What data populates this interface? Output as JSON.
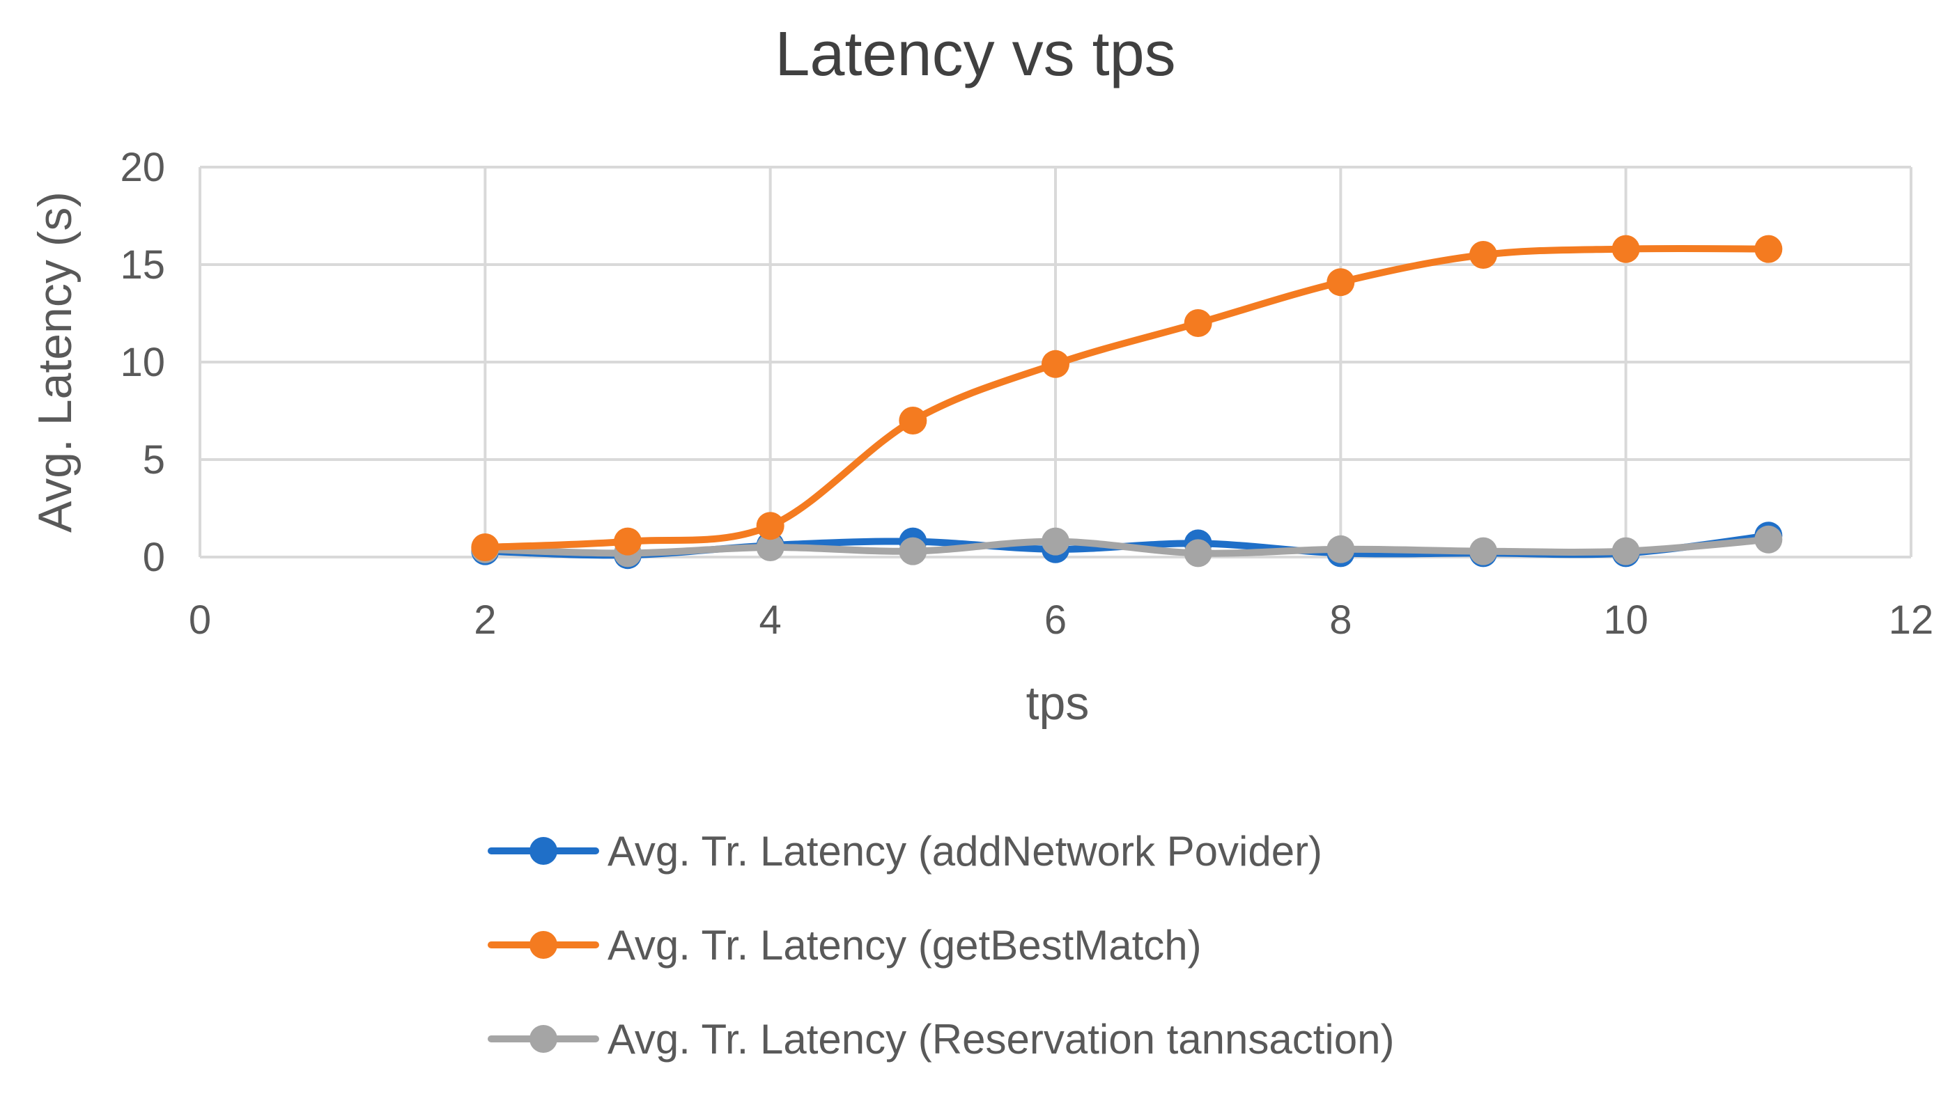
{
  "chart_data": {
    "type": "line",
    "title": "Latency vs tps",
    "xlabel": "tps",
    "ylabel": "Avg. Latency (s)",
    "xlim": [
      0,
      12
    ],
    "ylim": [
      0,
      20
    ],
    "xticks": [
      0,
      2,
      4,
      6,
      8,
      10,
      12
    ],
    "yticks": [
      0,
      5,
      10,
      15,
      20
    ],
    "grid": true,
    "smooth": true,
    "legend_position": "bottom",
    "x": [
      2,
      3,
      4,
      5,
      6,
      7,
      8,
      9,
      10,
      11
    ],
    "series": [
      {
        "name": "Avg. Tr. Latency (addNetwork Povider)",
        "color": "#1f6fc8",
        "values": [
          0.3,
          0.1,
          0.6,
          0.8,
          0.4,
          0.7,
          0.2,
          0.2,
          0.2,
          1.1
        ]
      },
      {
        "name": "Avg. Tr. Latency (getBestMatch)",
        "color": "#f47b20",
        "values": [
          0.5,
          0.8,
          1.6,
          7.0,
          9.9,
          12.0,
          14.1,
          15.5,
          15.8,
          15.8
        ]
      },
      {
        "name": "Avg. Tr. Latency (Reservation tannsaction)",
        "color": "#a5a5a5",
        "values": [
          0.4,
          0.2,
          0.5,
          0.3,
          0.8,
          0.2,
          0.4,
          0.3,
          0.3,
          0.9
        ]
      }
    ]
  }
}
